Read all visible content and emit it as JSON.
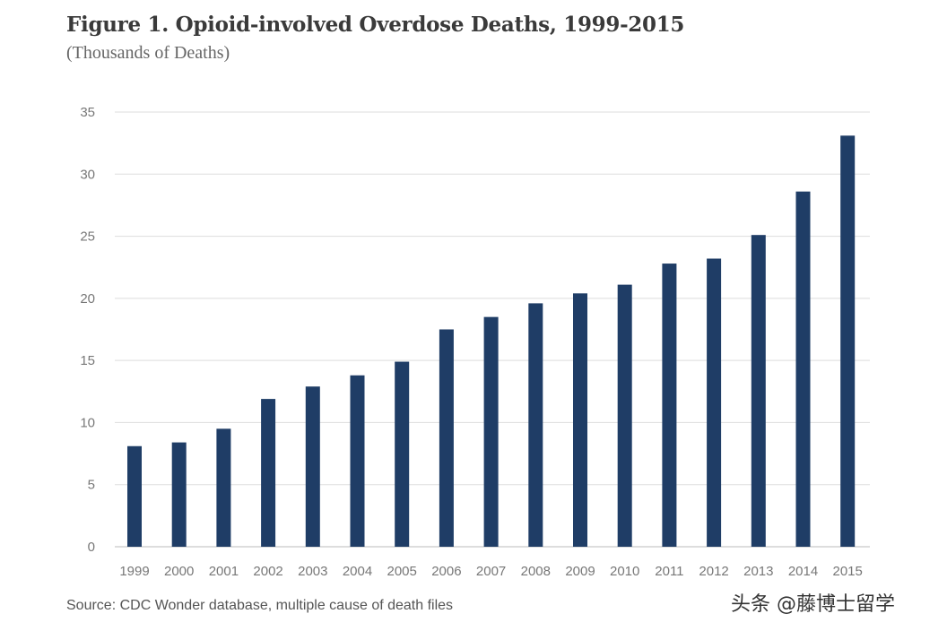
{
  "chart_data": {
    "type": "bar",
    "title": "Figure 1. Opioid-involved Overdose Deaths, 1999-2015",
    "subtitle": "(Thousands of Deaths)",
    "xlabel": "",
    "ylabel": "",
    "ylim": [
      0,
      35
    ],
    "yticks": [
      0,
      5,
      10,
      15,
      20,
      25,
      30,
      35
    ],
    "grid": true,
    "categories": [
      "1999",
      "2000",
      "2001",
      "2002",
      "2003",
      "2004",
      "2005",
      "2006",
      "2007",
      "2008",
      "2009",
      "2010",
      "2011",
      "2012",
      "2013",
      "2014",
      "2015"
    ],
    "values": [
      8.1,
      8.4,
      9.5,
      11.9,
      12.9,
      13.8,
      14.9,
      17.5,
      18.5,
      19.6,
      20.4,
      21.1,
      22.8,
      23.2,
      25.1,
      28.6,
      33.1
    ],
    "bar_color": "#1f3d66",
    "source": "Source: CDC Wonder database, multiple cause of death files"
  },
  "watermark": "头条 @藤博士留学"
}
